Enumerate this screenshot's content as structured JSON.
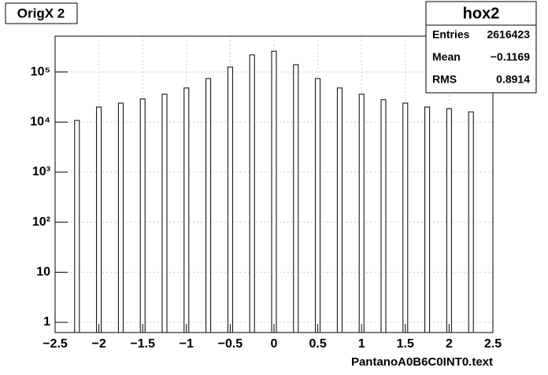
{
  "chart_data": {
    "type": "histogram",
    "title": "OrigX 2",
    "x_label": "PantanoA0B6C0INT0.text",
    "x": [
      -2.25,
      -2.0,
      -1.75,
      -1.5,
      -1.25,
      -1.0,
      -0.75,
      -0.5,
      -0.25,
      0.0,
      0.25,
      0.5,
      0.75,
      1.0,
      1.25,
      1.5,
      1.75,
      2.0,
      2.25
    ],
    "values": [
      10800,
      20000,
      24000,
      29000,
      36000,
      48000,
      74000,
      126000,
      220000,
      260000,
      140000,
      74000,
      48000,
      36000,
      28000,
      24000,
      20000,
      18500,
      16000
    ],
    "color": "#ffffff",
    "xlim": [
      -2.5,
      2.5
    ],
    "xticks": [
      {
        "value": -2.5,
        "label": "−2.5"
      },
      {
        "value": -2,
        "label": "−2"
      },
      {
        "value": -1.5,
        "label": "−1.5"
      },
      {
        "value": -1,
        "label": "−1"
      },
      {
        "value": -0.5,
        "label": "−0.5"
      },
      0,
      0.5,
      1,
      1.5,
      2,
      2.5
    ],
    "ylim": [
      0.625,
      520000
    ],
    "log_y": true,
    "yticks": [
      1,
      10,
      {
        "value": 100,
        "label": "10²"
      },
      {
        "value": 1000,
        "label": "10³"
      },
      {
        "value": 10000,
        "label": "10⁴"
      },
      {
        "value": 100000,
        "label": "10⁵"
      }
    ],
    "grid": true,
    "stats": {
      "title": "hox2",
      "rows": [
        {
          "name": "Entries",
          "value": 2616423
        },
        {
          "name": "Mean",
          "value": {
            "value": -0.1169,
            "label": "−0.1169"
          }
        },
        {
          "name": "RMS",
          "value": 0.8914
        }
      ]
    }
  }
}
